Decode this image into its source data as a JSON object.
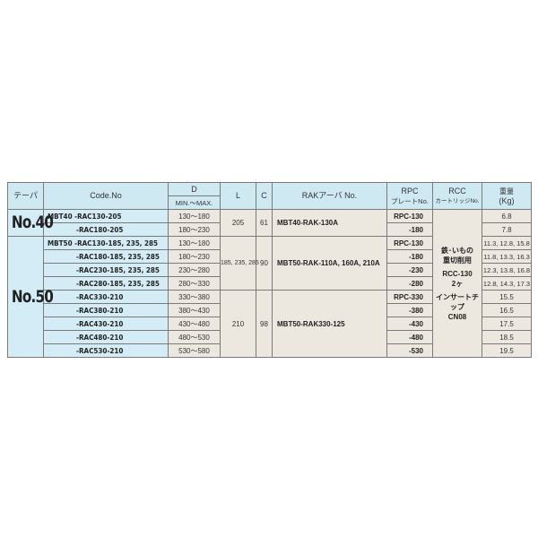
{
  "headers": {
    "taper": "テーパ",
    "code": "Code.No",
    "d": "D",
    "d_sub": "MIN.～MAX.",
    "l": "L",
    "c": "C",
    "rak": "RAKアーバ No.",
    "rpc1": "RPC",
    "rpc2": "プレートNo.",
    "rcc1": "RCC",
    "rcc2": "カートリッジNo.",
    "w1": "重量",
    "w2": "(Kg)"
  },
  "groups": {
    "no40": "No.40",
    "no50": "No.50"
  },
  "rows": [
    {
      "code": "MBT40 -RAC130-205",
      "d": "130～180",
      "rpc": "RPC-130",
      "w": "6.8"
    },
    {
      "code": "-RAC180-205",
      "d": "180～230",
      "rpc": "-180",
      "w": "7.8"
    },
    {
      "code": "MBT50 -RAC130-185, 235, 285",
      "d": "130～180",
      "rpc": "RPC-130",
      "w": "11.3, 12.8, 15.8"
    },
    {
      "code": "-RAC180-185, 235, 285",
      "d": "180～230",
      "rpc": "-180",
      "w": "11.8, 13.3, 16.3"
    },
    {
      "code": "-RAC230-185, 235, 285",
      "d": "230～280",
      "rpc": "-230",
      "w": "12.3, 13.8, 16.8"
    },
    {
      "code": "-RAC280-185, 235, 285",
      "d": "280～330",
      "rpc": "-280",
      "w": "12.8, 14.3, 17.3"
    },
    {
      "code": "-RAC330-210",
      "d": "330～380",
      "rpc": "RPC-330",
      "w": "15.5"
    },
    {
      "code": "-RAC380-210",
      "d": "380～430",
      "rpc": "-380",
      "w": "16.5"
    },
    {
      "code": "-RAC430-210",
      "d": "430～480",
      "rpc": "-430",
      "w": "17.5"
    },
    {
      "code": "-RAC480-210",
      "d": "480～530",
      "rpc": "-480",
      "w": "18.5"
    },
    {
      "code": "-RAC530-210",
      "d": "530～580",
      "rpc": "-530",
      "w": "19.5"
    }
  ],
  "merged": {
    "l": [
      "205",
      "185, 235, 285",
      "210"
    ],
    "c": [
      "61",
      "90",
      "98"
    ],
    "rak": [
      "MBT40-RAK-130A",
      "MBT50-RAK-110A, 160A, 210A",
      "MBT50-RAK330-125"
    ],
    "rcc": {
      "line1": "鉄･いもの",
      "line2": "重切削用",
      "line3": "RCC-130",
      "line4": "2ヶ",
      "line5": "インサートチップ",
      "line6": "CN08"
    }
  }
}
